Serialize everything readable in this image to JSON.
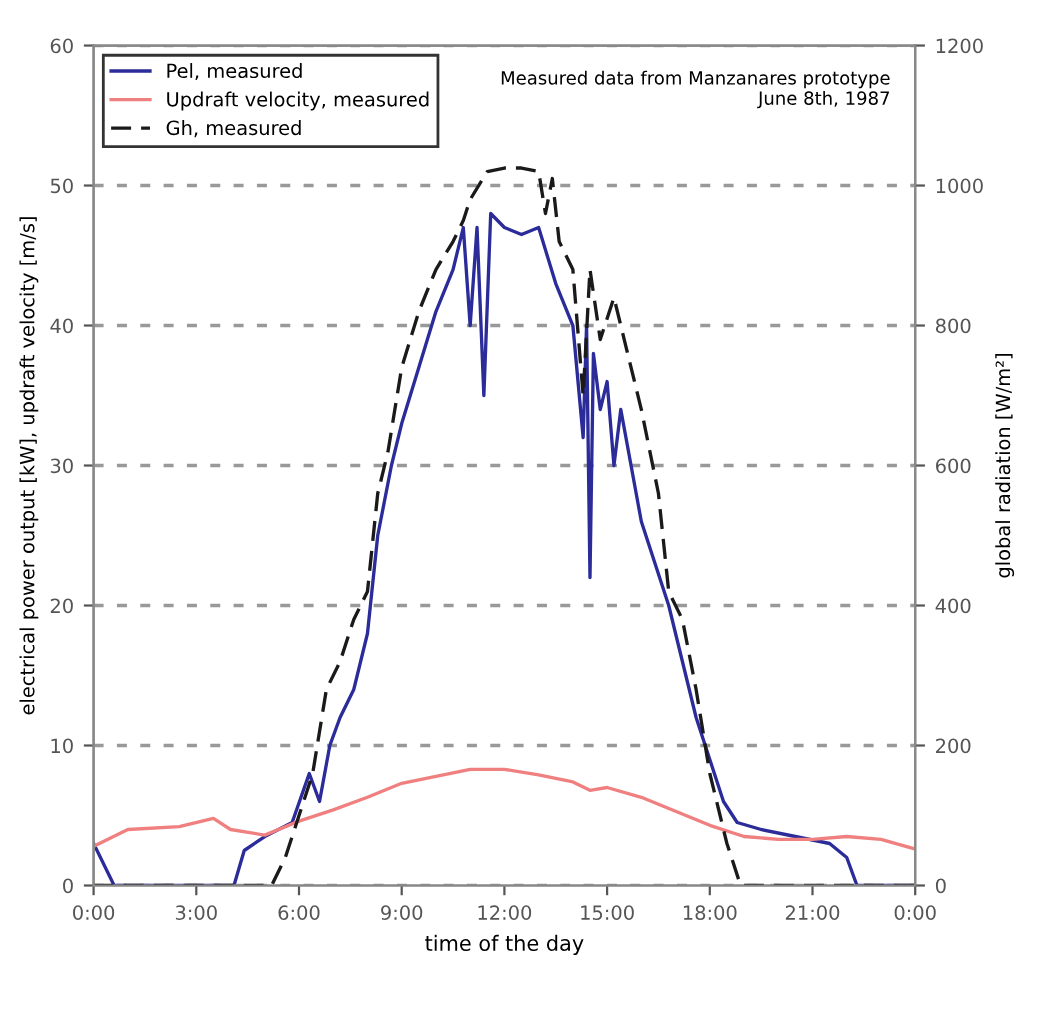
{
  "chart_data": {
    "type": "line",
    "xlabel": "time of the day",
    "ylabel": "electrical power output [kW], updraft velocity [m/s]",
    "y2label": "global radiation [W/m²]",
    "annotations": [
      "Measured data from Manzanares prototype\nJune 8th, 1987"
    ],
    "xlim": [
      0,
      24
    ],
    "xticks": [
      {
        "value": 0,
        "label": "0:00"
      },
      {
        "value": 3,
        "label": "3:00"
      },
      {
        "value": 6,
        "label": "6:00"
      },
      {
        "value": 9,
        "label": "9:00"
      },
      {
        "value": 12,
        "label": "12:00"
      },
      {
        "value": 15,
        "label": "15:00"
      },
      {
        "value": 18,
        "label": "18:00"
      },
      {
        "value": 21,
        "label": "21:00"
      },
      {
        "value": 24,
        "label": "0:00"
      }
    ],
    "ylim": [
      0,
      60
    ],
    "yticks": [
      0,
      10,
      20,
      30,
      40,
      50,
      60
    ],
    "y2lim": [
      0,
      1200
    ],
    "y2ticks": [
      0,
      200,
      400,
      600,
      800,
      1000,
      1200
    ],
    "grid": "y",
    "legend": "top left",
    "series": [
      {
        "name": "Pel, measured",
        "color": "#2b2b9a",
        "line_style": "solid",
        "x": [
          0,
          0.6,
          4.1,
          4.4,
          5.0,
          5.8,
          6.3,
          6.6,
          6.9,
          7.2,
          7.6,
          8.0,
          8.3,
          8.7,
          9.0,
          9.5,
          10.0,
          10.5,
          10.8,
          11.0,
          11.2,
          11.4,
          11.6,
          12.0,
          12.5,
          13.0,
          13.5,
          14.0,
          14.3,
          14.4,
          14.5,
          14.6,
          14.8,
          15.0,
          15.2,
          15.4,
          15.7,
          16.0,
          16.4,
          16.8,
          17.2,
          17.6,
          18.0,
          18.4,
          18.8,
          19.5,
          20.5,
          21.5,
          22.0,
          22.3,
          24
        ],
        "values": [
          3,
          0,
          0,
          2.5,
          3.5,
          4.5,
          8,
          6,
          10,
          12,
          14,
          18,
          25,
          30,
          33,
          37,
          41,
          44,
          47,
          40,
          47,
          35,
          48,
          47,
          46.5,
          47,
          43,
          40,
          32,
          40,
          22,
          38,
          34,
          36,
          30,
          34,
          30,
          26,
          23,
          20,
          16,
          12,
          9,
          6,
          4.5,
          4,
          3.5,
          3,
          2,
          0,
          0
        ]
      },
      {
        "name": "Updraft velocity, measured",
        "color": "#f08080",
        "line_style": "solid",
        "x": [
          0,
          1,
          2.5,
          3.5,
          4,
          5,
          6,
          7,
          8,
          9,
          10,
          11,
          12,
          13,
          14,
          14.5,
          15,
          16,
          17,
          18,
          19,
          20,
          21,
          22,
          23,
          24
        ],
        "values": [
          2.8,
          4,
          4.2,
          4.8,
          4,
          3.6,
          4.6,
          5.4,
          6.3,
          7.3,
          7.8,
          8.3,
          8.3,
          7.9,
          7.4,
          6.8,
          7,
          6.3,
          5.3,
          4.3,
          3.5,
          3.3,
          3.3,
          3.5,
          3.3,
          2.6
        ]
      },
      {
        "name": "Gh, measured",
        "color": "#1a1a1a",
        "line_style": "dashed",
        "axis": "y2",
        "x": [
          0,
          4.7,
          5.2,
          5.6,
          6.0,
          6.4,
          6.8,
          7.2,
          7.6,
          8.0,
          8.3,
          8.6,
          9.0,
          9.5,
          10.0,
          10.5,
          10.8,
          11.0,
          11.5,
          12.0,
          12.5,
          13.0,
          13.2,
          13.4,
          13.6,
          14.0,
          14.3,
          14.5,
          14.8,
          15.2,
          15.6,
          16.0,
          16.5,
          16.8,
          17.2,
          17.6,
          18.0,
          18.5,
          18.9,
          24
        ],
        "values": [
          0,
          0,
          0,
          40,
          100,
          160,
          280,
          320,
          380,
          420,
          560,
          620,
          740,
          820,
          880,
          920,
          950,
          980,
          1020,
          1025,
          1025,
          1020,
          960,
          1010,
          920,
          880,
          700,
          880,
          780,
          840,
          760,
          680,
          560,
          420,
          380,
          280,
          160,
          60,
          0,
          0
        ]
      }
    ]
  }
}
